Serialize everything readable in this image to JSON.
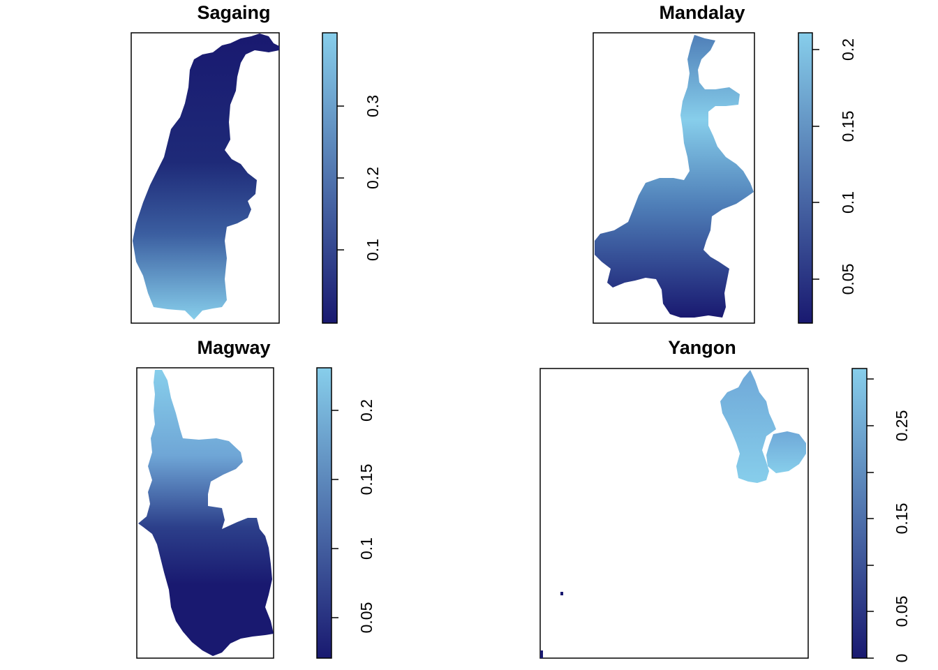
{
  "colors": {
    "low": "#191970",
    "high": "#87CEEB",
    "frame": "#000000",
    "background": "#ffffff"
  },
  "maps": [
    {
      "title": "Sagaing",
      "legend_ticks": [
        "0.1",
        "0.2",
        "0.3"
      ],
      "legend_range": [
        0.0,
        0.4
      ],
      "gradient": "south-high"
    },
    {
      "title": "Mandalay",
      "legend_ticks": [
        "0.05",
        "0.1",
        "0.15",
        "0.2"
      ],
      "legend_range": [
        0.02,
        0.21
      ],
      "gradient": "north-high"
    },
    {
      "title": "Magway",
      "legend_ticks": [
        "0.05",
        "0.1",
        "0.15",
        "0.2"
      ],
      "legend_range": [
        0.02,
        0.23
      ],
      "gradient": "north-high"
    },
    {
      "title": "Yangon",
      "legend_ticks": [
        "0",
        "0.05",
        "0.15",
        "0.25"
      ],
      "legend_range": [
        0.0,
        0.3
      ],
      "gradient": "uniform-high"
    }
  ]
}
